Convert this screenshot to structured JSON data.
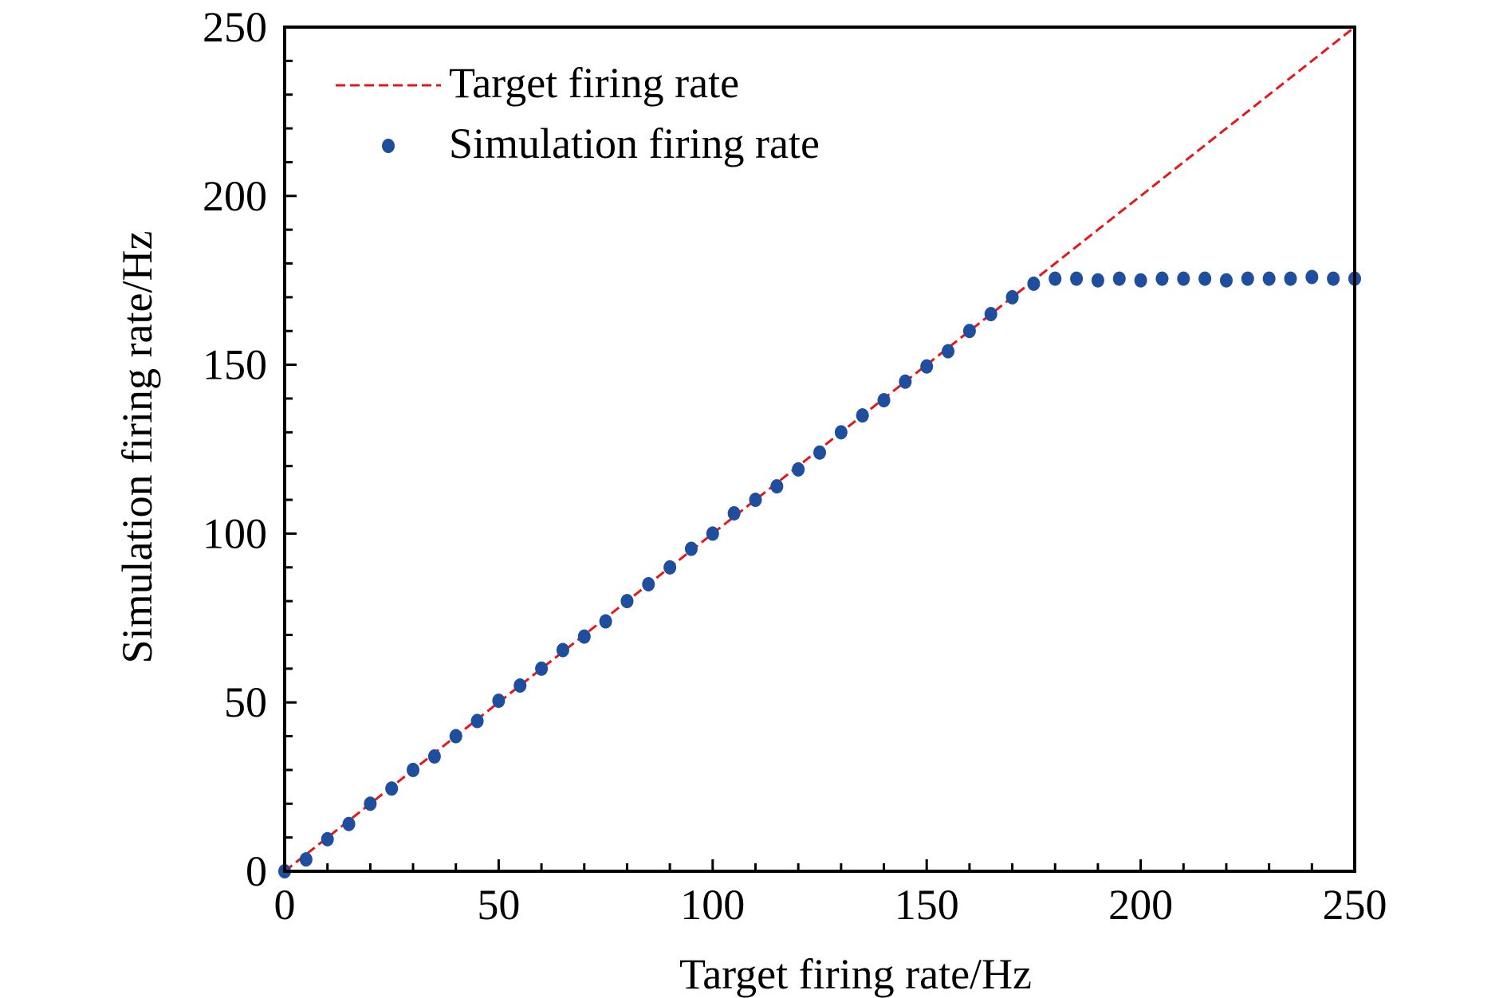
{
  "chart_data": {
    "type": "scatter",
    "title": "",
    "xlabel": "Target firing rate/Hz",
    "ylabel": "Simulation firing rate/Hz",
    "xlim": [
      0,
      250
    ],
    "ylim": [
      0,
      250
    ],
    "xticks": [
      0,
      50,
      100,
      150,
      200,
      250
    ],
    "yticks": [
      0,
      50,
      100,
      150,
      200,
      250
    ],
    "grid": false,
    "legend_position": "top-left",
    "series": [
      {
        "name": "Target firing rate",
        "kind": "line",
        "style": "dashed",
        "color": "#e8161b",
        "x": [
          0,
          250
        ],
        "y": [
          0,
          250
        ]
      },
      {
        "name": "Simulation firing rate",
        "kind": "scatter",
        "color": "#1f4e9e",
        "x": [
          0,
          5,
          10,
          15,
          20,
          25,
          30,
          35,
          40,
          45,
          50,
          55,
          60,
          65,
          70,
          75,
          80,
          85,
          90,
          95,
          100,
          105,
          110,
          115,
          120,
          125,
          130,
          135,
          140,
          145,
          150,
          155,
          160,
          165,
          170,
          175,
          180,
          185,
          190,
          195,
          200,
          205,
          210,
          215,
          220,
          225,
          230,
          235,
          240,
          245,
          250
        ],
        "y": [
          0,
          3.5,
          9.5,
          14,
          20,
          24.5,
          30,
          34,
          40,
          44.5,
          50.5,
          55,
          60,
          65.5,
          69.5,
          74,
          80,
          85,
          90,
          95.5,
          100,
          106,
          110,
          114,
          119,
          124,
          130,
          135,
          139.5,
          145,
          149.5,
          154,
          160,
          165,
          170,
          174,
          175.5,
          175.5,
          175,
          175.5,
          175,
          175.5,
          175.5,
          175.5,
          175,
          175.5,
          175.5,
          175.5,
          176,
          175.5,
          175.5
        ]
      }
    ]
  }
}
